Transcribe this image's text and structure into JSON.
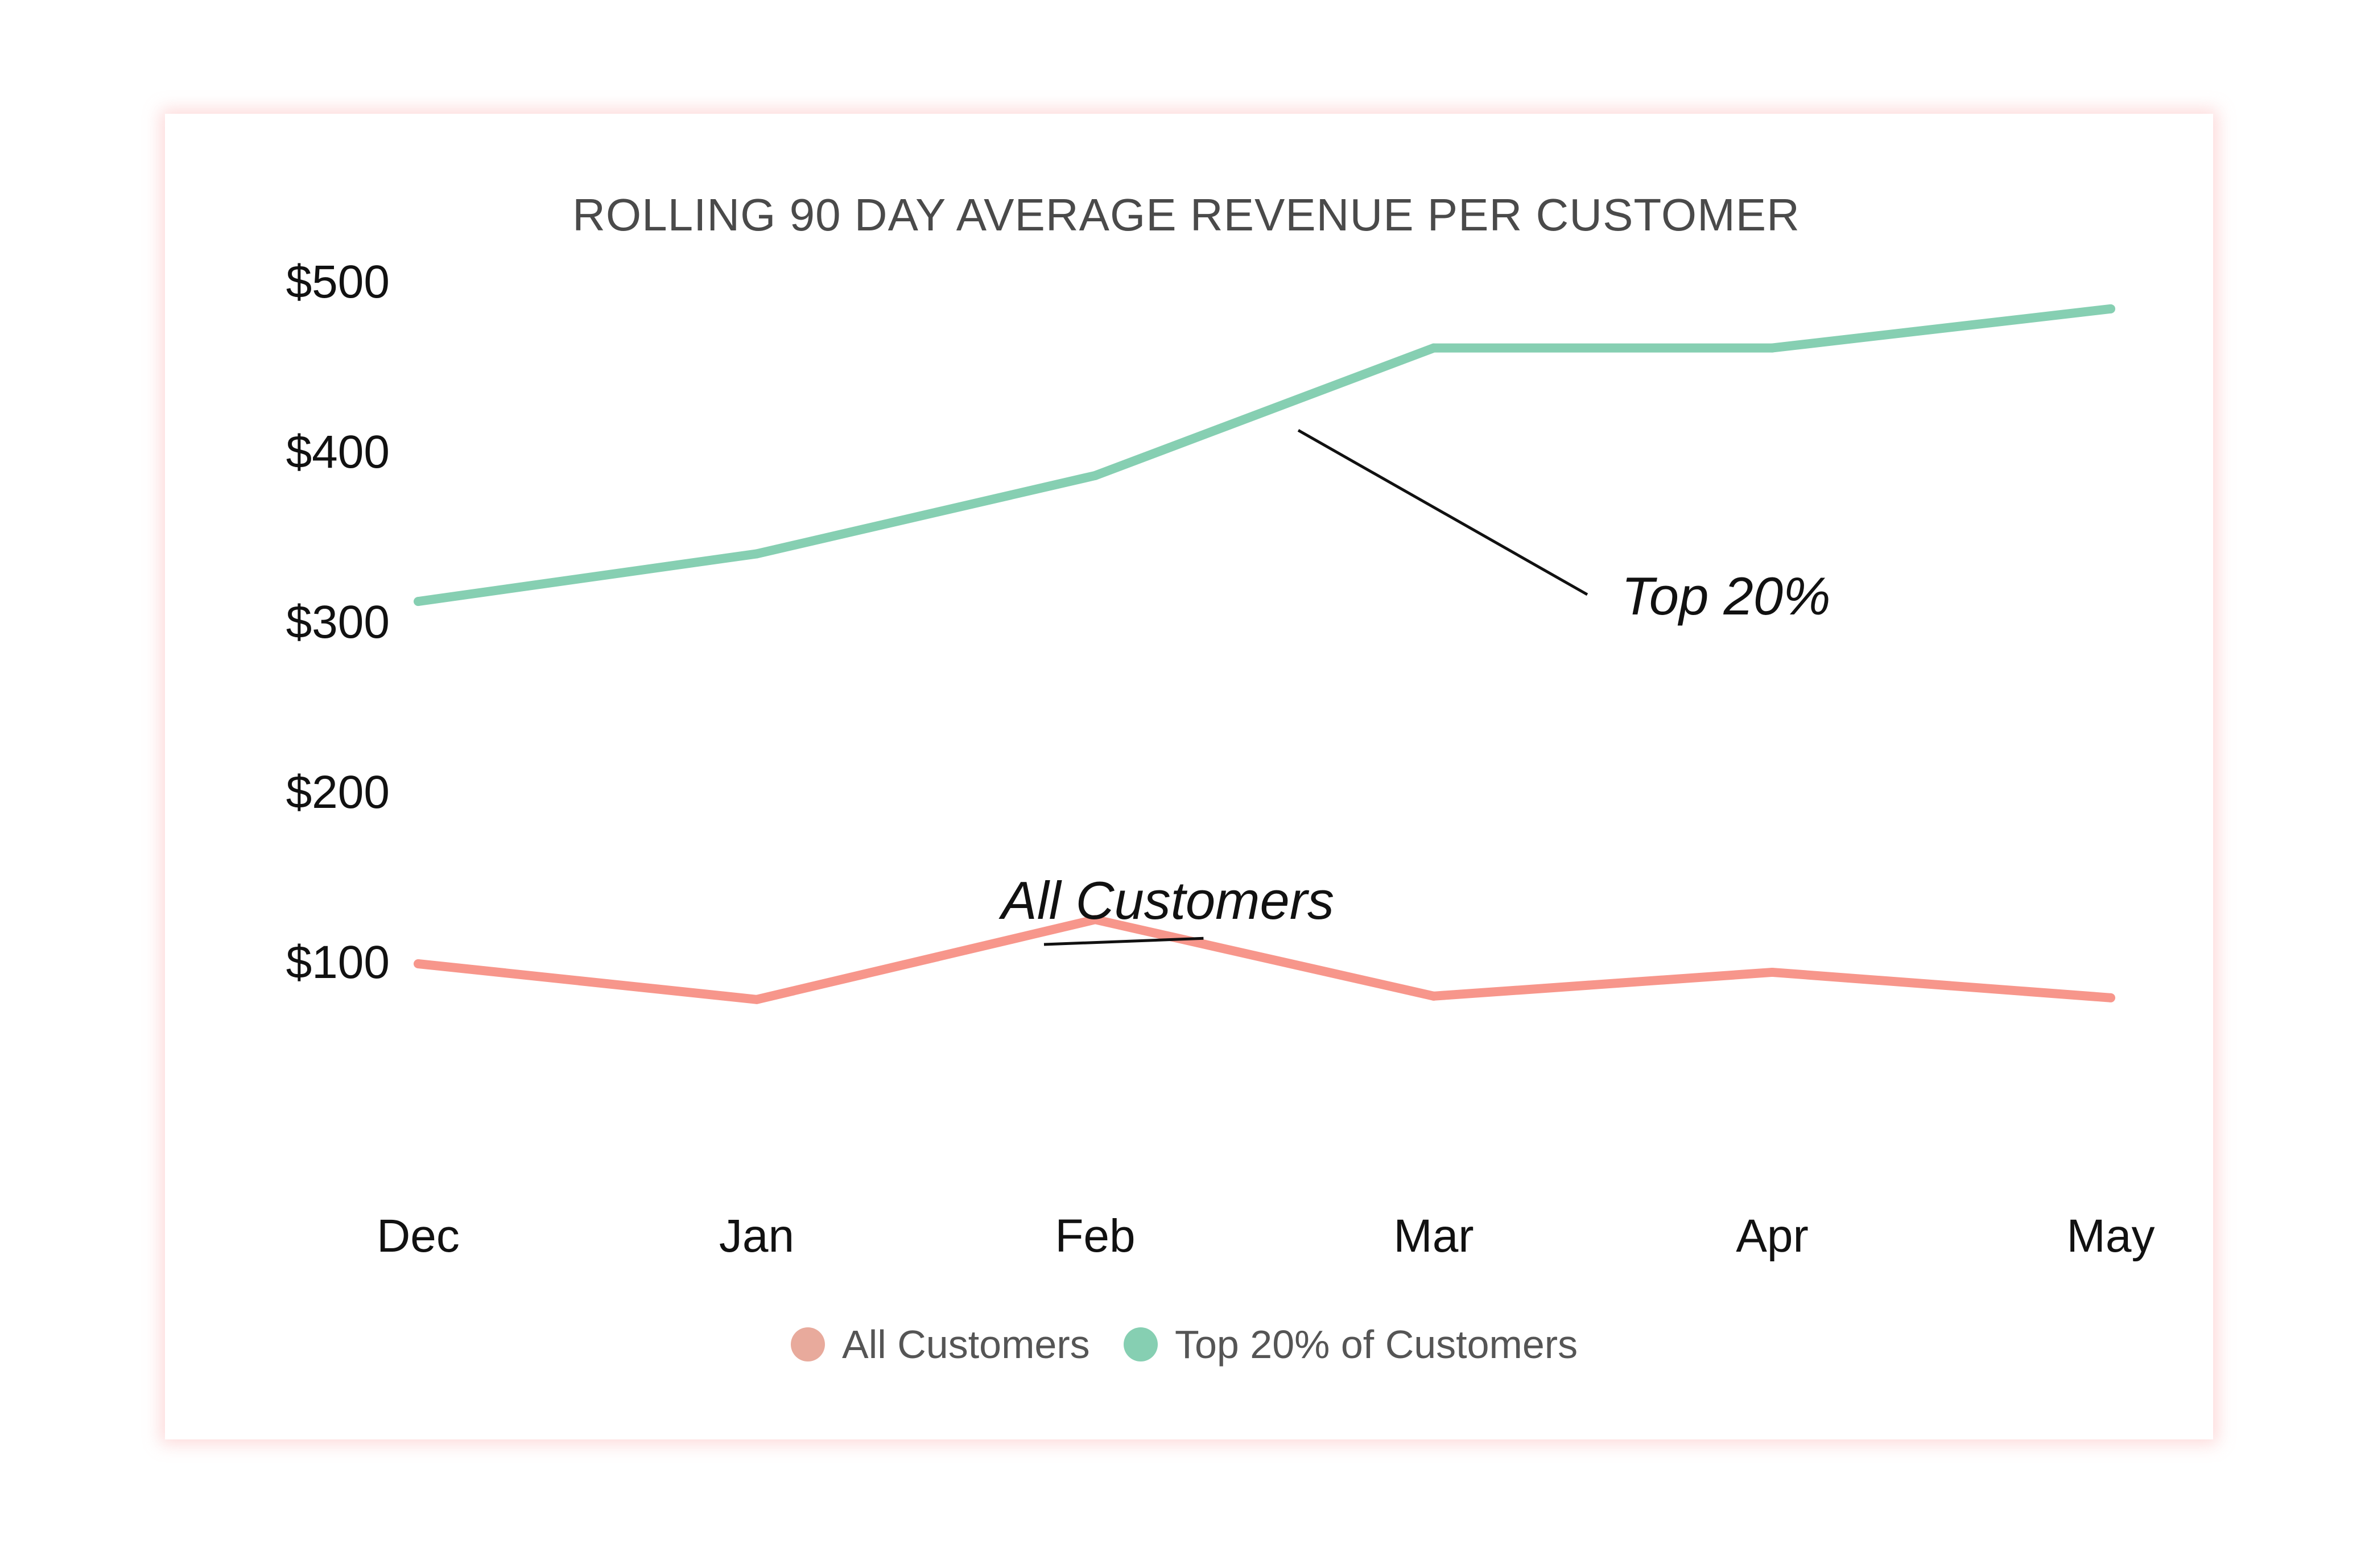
{
  "chart_data": {
    "type": "line",
    "title": "ROLLING 90 DAY AVERAGE REVENUE PER CUSTOMER",
    "x": [
      "Dec",
      "Jan",
      "Feb",
      "Mar",
      "Apr",
      "May"
    ],
    "ylim": [
      0,
      500
    ],
    "yticks": [
      "$100",
      "$200",
      "$300",
      "$400",
      "$500"
    ],
    "ytick_values": [
      100,
      200,
      300,
      400,
      500
    ],
    "grid": false,
    "legend_position": "bottom-center",
    "series": [
      {
        "name": "All Customers",
        "color": "#f7968b",
        "legend_color": "#e8aa9c",
        "values": [
          99,
          78,
          125,
          80,
          94,
          79
        ]
      },
      {
        "name": "Top 20% of Customers",
        "color": "#86cfb2",
        "legend_color": "#86cfb2",
        "values": [
          312,
          340,
          386,
          461,
          461,
          484
        ]
      }
    ],
    "annotations": [
      {
        "text": "Top 20%",
        "series_index": 1
      },
      {
        "text": "All Customers",
        "series_index": 0
      }
    ]
  }
}
